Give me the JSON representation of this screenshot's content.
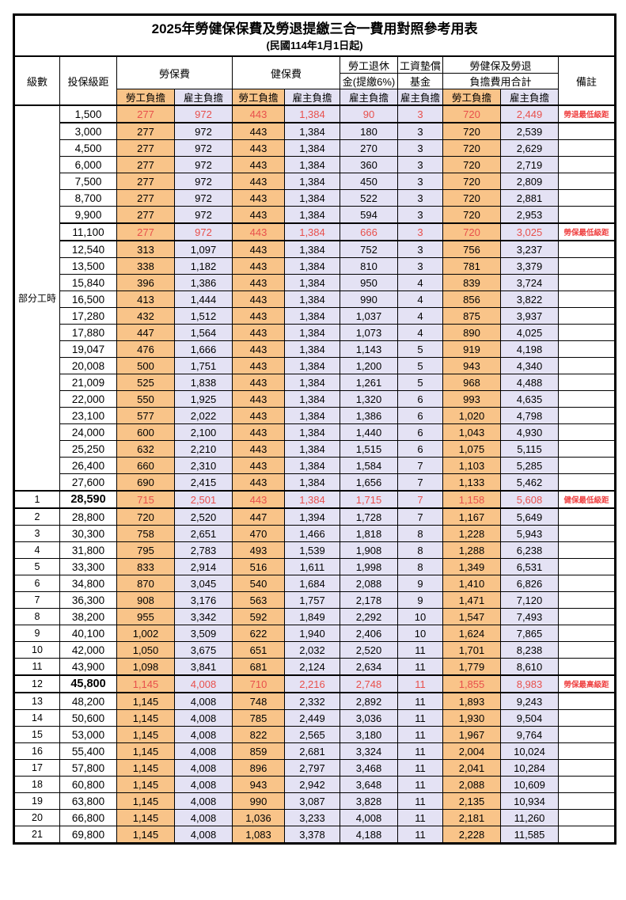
{
  "title": "2025年勞健保保費及勞退提繳三合一費用對照參考用表",
  "subtitle": "(民國114年1月1日起)",
  "columns": {
    "level": "級數",
    "bracket": "投保級距",
    "labor_insurance": "勞保費",
    "health_insurance": "健保費",
    "pension_line1": "勞工退休",
    "pension_line2": "金(提繳6%)",
    "wage_fund_line1": "工資墊償",
    "wage_fund_line2": "基金",
    "total_line1": "勞健保及勞退",
    "total_line2": "負擔費用合計",
    "note": "備註",
    "employee_share": "勞工負擔",
    "employer_share": "雇主負擔"
  },
  "part_time_label": "部分工時",
  "part_time_span": 23,
  "colors": {
    "employee_fill": "#f9c489",
    "employer_fill": "#e4e2f4",
    "highlight_text": "#e8504c",
    "note_text": "#ef4040"
  },
  "rows": [
    {
      "lv": "",
      "bk": "1,500",
      "li_e": "277",
      "li_r": "972",
      "hi_e": "443",
      "hi_r": "1,384",
      "pen": "90",
      "fund": "3",
      "tot_e": "720",
      "tot_r": "2,449",
      "nt": "勞退最低級距",
      "red": true,
      "bold": false
    },
    {
      "lv": "",
      "bk": "3,000",
      "li_e": "277",
      "li_r": "972",
      "hi_e": "443",
      "hi_r": "1,384",
      "pen": "180",
      "fund": "3",
      "tot_e": "720",
      "tot_r": "2,539",
      "nt": "",
      "red": false,
      "bold": false
    },
    {
      "lv": "",
      "bk": "4,500",
      "li_e": "277",
      "li_r": "972",
      "hi_e": "443",
      "hi_r": "1,384",
      "pen": "270",
      "fund": "3",
      "tot_e": "720",
      "tot_r": "2,629",
      "nt": "",
      "red": false,
      "bold": false
    },
    {
      "lv": "",
      "bk": "6,000",
      "li_e": "277",
      "li_r": "972",
      "hi_e": "443",
      "hi_r": "1,384",
      "pen": "360",
      "fund": "3",
      "tot_e": "720",
      "tot_r": "2,719",
      "nt": "",
      "red": false,
      "bold": false
    },
    {
      "lv": "",
      "bk": "7,500",
      "li_e": "277",
      "li_r": "972",
      "hi_e": "443",
      "hi_r": "1,384",
      "pen": "450",
      "fund": "3",
      "tot_e": "720",
      "tot_r": "2,809",
      "nt": "",
      "red": false,
      "bold": false
    },
    {
      "lv": "",
      "bk": "8,700",
      "li_e": "277",
      "li_r": "972",
      "hi_e": "443",
      "hi_r": "1,384",
      "pen": "522",
      "fund": "3",
      "tot_e": "720",
      "tot_r": "2,881",
      "nt": "",
      "red": false,
      "bold": false
    },
    {
      "lv": "",
      "bk": "9,900",
      "li_e": "277",
      "li_r": "972",
      "hi_e": "443",
      "hi_r": "1,384",
      "pen": "594",
      "fund": "3",
      "tot_e": "720",
      "tot_r": "2,953",
      "nt": "",
      "red": false,
      "bold": false
    },
    {
      "lv": "",
      "bk": "11,100",
      "li_e": "277",
      "li_r": "972",
      "hi_e": "443",
      "hi_r": "1,384",
      "pen": "666",
      "fund": "3",
      "tot_e": "720",
      "tot_r": "3,025",
      "nt": "勞保最低級距",
      "red": true,
      "bold": false
    },
    {
      "lv": "",
      "bk": "12,540",
      "li_e": "313",
      "li_r": "1,097",
      "hi_e": "443",
      "hi_r": "1,384",
      "pen": "752",
      "fund": "3",
      "tot_e": "756",
      "tot_r": "3,237",
      "nt": "",
      "red": false,
      "bold": false
    },
    {
      "lv": "",
      "bk": "13,500",
      "li_e": "338",
      "li_r": "1,182",
      "hi_e": "443",
      "hi_r": "1,384",
      "pen": "810",
      "fund": "3",
      "tot_e": "781",
      "tot_r": "3,379",
      "nt": "",
      "red": false,
      "bold": false
    },
    {
      "lv": "",
      "bk": "15,840",
      "li_e": "396",
      "li_r": "1,386",
      "hi_e": "443",
      "hi_r": "1,384",
      "pen": "950",
      "fund": "4",
      "tot_e": "839",
      "tot_r": "3,724",
      "nt": "",
      "red": false,
      "bold": false
    },
    {
      "lv": "",
      "bk": "16,500",
      "li_e": "413",
      "li_r": "1,444",
      "hi_e": "443",
      "hi_r": "1,384",
      "pen": "990",
      "fund": "4",
      "tot_e": "856",
      "tot_r": "3,822",
      "nt": "",
      "red": false,
      "bold": false
    },
    {
      "lv": "",
      "bk": "17,280",
      "li_e": "432",
      "li_r": "1,512",
      "hi_e": "443",
      "hi_r": "1,384",
      "pen": "1,037",
      "fund": "4",
      "tot_e": "875",
      "tot_r": "3,937",
      "nt": "",
      "red": false,
      "bold": false
    },
    {
      "lv": "",
      "bk": "17,880",
      "li_e": "447",
      "li_r": "1,564",
      "hi_e": "443",
      "hi_r": "1,384",
      "pen": "1,073",
      "fund": "4",
      "tot_e": "890",
      "tot_r": "4,025",
      "nt": "",
      "red": false,
      "bold": false
    },
    {
      "lv": "",
      "bk": "19,047",
      "li_e": "476",
      "li_r": "1,666",
      "hi_e": "443",
      "hi_r": "1,384",
      "pen": "1,143",
      "fund": "5",
      "tot_e": "919",
      "tot_r": "4,198",
      "nt": "",
      "red": false,
      "bold": false
    },
    {
      "lv": "",
      "bk": "20,008",
      "li_e": "500",
      "li_r": "1,751",
      "hi_e": "443",
      "hi_r": "1,384",
      "pen": "1,200",
      "fund": "5",
      "tot_e": "943",
      "tot_r": "4,340",
      "nt": "",
      "red": false,
      "bold": false
    },
    {
      "lv": "",
      "bk": "21,009",
      "li_e": "525",
      "li_r": "1,838",
      "hi_e": "443",
      "hi_r": "1,384",
      "pen": "1,261",
      "fund": "5",
      "tot_e": "968",
      "tot_r": "4,488",
      "nt": "",
      "red": false,
      "bold": false
    },
    {
      "lv": "",
      "bk": "22,000",
      "li_e": "550",
      "li_r": "1,925",
      "hi_e": "443",
      "hi_r": "1,384",
      "pen": "1,320",
      "fund": "6",
      "tot_e": "993",
      "tot_r": "4,635",
      "nt": "",
      "red": false,
      "bold": false
    },
    {
      "lv": "",
      "bk": "23,100",
      "li_e": "577",
      "li_r": "2,022",
      "hi_e": "443",
      "hi_r": "1,384",
      "pen": "1,386",
      "fund": "6",
      "tot_e": "1,020",
      "tot_r": "4,798",
      "nt": "",
      "red": false,
      "bold": false
    },
    {
      "lv": "",
      "bk": "24,000",
      "li_e": "600",
      "li_r": "2,100",
      "hi_e": "443",
      "hi_r": "1,384",
      "pen": "1,440",
      "fund": "6",
      "tot_e": "1,043",
      "tot_r": "4,930",
      "nt": "",
      "red": false,
      "bold": false
    },
    {
      "lv": "",
      "bk": "25,250",
      "li_e": "632",
      "li_r": "2,210",
      "hi_e": "443",
      "hi_r": "1,384",
      "pen": "1,515",
      "fund": "6",
      "tot_e": "1,075",
      "tot_r": "5,115",
      "nt": "",
      "red": false,
      "bold": false
    },
    {
      "lv": "",
      "bk": "26,400",
      "li_e": "660",
      "li_r": "2,310",
      "hi_e": "443",
      "hi_r": "1,384",
      "pen": "1,584",
      "fund": "7",
      "tot_e": "1,103",
      "tot_r": "5,285",
      "nt": "",
      "red": false,
      "bold": false
    },
    {
      "lv": "",
      "bk": "27,600",
      "li_e": "690",
      "li_r": "2,415",
      "hi_e": "443",
      "hi_r": "1,384",
      "pen": "1,656",
      "fund": "7",
      "tot_e": "1,133",
      "tot_r": "5,462",
      "nt": "",
      "red": false,
      "bold": false
    },
    {
      "lv": "1",
      "bk": "28,590",
      "li_e": "715",
      "li_r": "2,501",
      "hi_e": "443",
      "hi_r": "1,384",
      "pen": "1,715",
      "fund": "7",
      "tot_e": "1,158",
      "tot_r": "5,608",
      "nt": "健保最低級距",
      "red": true,
      "bold": true
    },
    {
      "lv": "2",
      "bk": "28,800",
      "li_e": "720",
      "li_r": "2,520",
      "hi_e": "447",
      "hi_r": "1,394",
      "pen": "1,728",
      "fund": "7",
      "tot_e": "1,167",
      "tot_r": "5,649",
      "nt": "",
      "red": false,
      "bold": false
    },
    {
      "lv": "3",
      "bk": "30,300",
      "li_e": "758",
      "li_r": "2,651",
      "hi_e": "470",
      "hi_r": "1,466",
      "pen": "1,818",
      "fund": "8",
      "tot_e": "1,228",
      "tot_r": "5,943",
      "nt": "",
      "red": false,
      "bold": false
    },
    {
      "lv": "4",
      "bk": "31,800",
      "li_e": "795",
      "li_r": "2,783",
      "hi_e": "493",
      "hi_r": "1,539",
      "pen": "1,908",
      "fund": "8",
      "tot_e": "1,288",
      "tot_r": "6,238",
      "nt": "",
      "red": false,
      "bold": false
    },
    {
      "lv": "5",
      "bk": "33,300",
      "li_e": "833",
      "li_r": "2,914",
      "hi_e": "516",
      "hi_r": "1,611",
      "pen": "1,998",
      "fund": "8",
      "tot_e": "1,349",
      "tot_r": "6,531",
      "nt": "",
      "red": false,
      "bold": false
    },
    {
      "lv": "6",
      "bk": "34,800",
      "li_e": "870",
      "li_r": "3,045",
      "hi_e": "540",
      "hi_r": "1,684",
      "pen": "2,088",
      "fund": "9",
      "tot_e": "1,410",
      "tot_r": "6,826",
      "nt": "",
      "red": false,
      "bold": false
    },
    {
      "lv": "7",
      "bk": "36,300",
      "li_e": "908",
      "li_r": "3,176",
      "hi_e": "563",
      "hi_r": "1,757",
      "pen": "2,178",
      "fund": "9",
      "tot_e": "1,471",
      "tot_r": "7,120",
      "nt": "",
      "red": false,
      "bold": false
    },
    {
      "lv": "8",
      "bk": "38,200",
      "li_e": "955",
      "li_r": "3,342",
      "hi_e": "592",
      "hi_r": "1,849",
      "pen": "2,292",
      "fund": "10",
      "tot_e": "1,547",
      "tot_r": "7,493",
      "nt": "",
      "red": false,
      "bold": false
    },
    {
      "lv": "9",
      "bk": "40,100",
      "li_e": "1,002",
      "li_r": "3,509",
      "hi_e": "622",
      "hi_r": "1,940",
      "pen": "2,406",
      "fund": "10",
      "tot_e": "1,624",
      "tot_r": "7,865",
      "nt": "",
      "red": false,
      "bold": false
    },
    {
      "lv": "10",
      "bk": "42,000",
      "li_e": "1,050",
      "li_r": "3,675",
      "hi_e": "651",
      "hi_r": "2,032",
      "pen": "2,520",
      "fund": "11",
      "tot_e": "1,701",
      "tot_r": "8,238",
      "nt": "",
      "red": false,
      "bold": false
    },
    {
      "lv": "11",
      "bk": "43,900",
      "li_e": "1,098",
      "li_r": "3,841",
      "hi_e": "681",
      "hi_r": "2,124",
      "pen": "2,634",
      "fund": "11",
      "tot_e": "1,779",
      "tot_r": "8,610",
      "nt": "",
      "red": false,
      "bold": false
    },
    {
      "lv": "12",
      "bk": "45,800",
      "li_e": "1,145",
      "li_r": "4,008",
      "hi_e": "710",
      "hi_r": "2,216",
      "pen": "2,748",
      "fund": "11",
      "tot_e": "1,855",
      "tot_r": "8,983",
      "nt": "勞保最高級距",
      "red": true,
      "bold": true
    },
    {
      "lv": "13",
      "bk": "48,200",
      "li_e": "1,145",
      "li_r": "4,008",
      "hi_e": "748",
      "hi_r": "2,332",
      "pen": "2,892",
      "fund": "11",
      "tot_e": "1,893",
      "tot_r": "9,243",
      "nt": "",
      "red": false,
      "bold": false
    },
    {
      "lv": "14",
      "bk": "50,600",
      "li_e": "1,145",
      "li_r": "4,008",
      "hi_e": "785",
      "hi_r": "2,449",
      "pen": "3,036",
      "fund": "11",
      "tot_e": "1,930",
      "tot_r": "9,504",
      "nt": "",
      "red": false,
      "bold": false
    },
    {
      "lv": "15",
      "bk": "53,000",
      "li_e": "1,145",
      "li_r": "4,008",
      "hi_e": "822",
      "hi_r": "2,565",
      "pen": "3,180",
      "fund": "11",
      "tot_e": "1,967",
      "tot_r": "9,764",
      "nt": "",
      "red": false,
      "bold": false
    },
    {
      "lv": "16",
      "bk": "55,400",
      "li_e": "1,145",
      "li_r": "4,008",
      "hi_e": "859",
      "hi_r": "2,681",
      "pen": "3,324",
      "fund": "11",
      "tot_e": "2,004",
      "tot_r": "10,024",
      "nt": "",
      "red": false,
      "bold": false
    },
    {
      "lv": "17",
      "bk": "57,800",
      "li_e": "1,145",
      "li_r": "4,008",
      "hi_e": "896",
      "hi_r": "2,797",
      "pen": "3,468",
      "fund": "11",
      "tot_e": "2,041",
      "tot_r": "10,284",
      "nt": "",
      "red": false,
      "bold": false
    },
    {
      "lv": "18",
      "bk": "60,800",
      "li_e": "1,145",
      "li_r": "4,008",
      "hi_e": "943",
      "hi_r": "2,942",
      "pen": "3,648",
      "fund": "11",
      "tot_e": "2,088",
      "tot_r": "10,609",
      "nt": "",
      "red": false,
      "bold": false
    },
    {
      "lv": "19",
      "bk": "63,800",
      "li_e": "1,145",
      "li_r": "4,008",
      "hi_e": "990",
      "hi_r": "3,087",
      "pen": "3,828",
      "fund": "11",
      "tot_e": "2,135",
      "tot_r": "10,934",
      "nt": "",
      "red": false,
      "bold": false
    },
    {
      "lv": "20",
      "bk": "66,800",
      "li_e": "1,145",
      "li_r": "4,008",
      "hi_e": "1,036",
      "hi_r": "3,233",
      "pen": "4,008",
      "fund": "11",
      "tot_e": "2,181",
      "tot_r": "11,260",
      "nt": "",
      "red": false,
      "bold": false
    },
    {
      "lv": "21",
      "bk": "69,800",
      "li_e": "1,145",
      "li_r": "4,008",
      "hi_e": "1,083",
      "hi_r": "3,378",
      "pen": "4,188",
      "fund": "11",
      "tot_e": "2,228",
      "tot_r": "11,585",
      "nt": "",
      "red": false,
      "bold": false
    }
  ]
}
